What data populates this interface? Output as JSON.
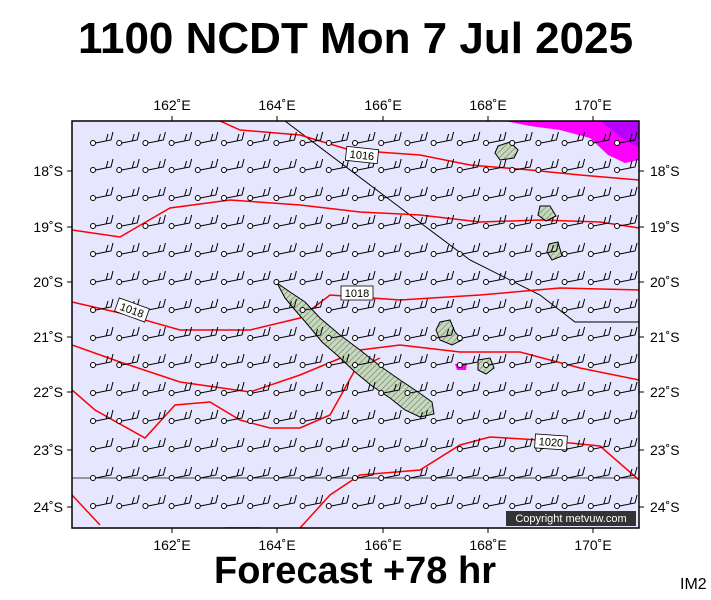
{
  "header": {
    "title": "1100 NCDT Mon 7 Jul 2025"
  },
  "footer": {
    "forecast_label": "Forecast +78 hr",
    "image_code": "IM2"
  },
  "copyright": "Copyright metvuw.com",
  "colors": {
    "ocean": "#e6e6ff",
    "isobar": "#ff0000",
    "land": "#c8d8c0",
    "precip": "#ff00ff",
    "wind": "#000000"
  },
  "axes": {
    "lon_ticks": [
      "162˚E",
      "164˚E",
      "166˚E",
      "168˚E",
      "170˚E"
    ],
    "lat_ticks": [
      "18˚S",
      "19˚S",
      "20˚S",
      "21˚S",
      "22˚S",
      "23˚S",
      "24˚S"
    ]
  },
  "isobar_labels": [
    "1016",
    "1018",
    "1018",
    "1020"
  ]
}
